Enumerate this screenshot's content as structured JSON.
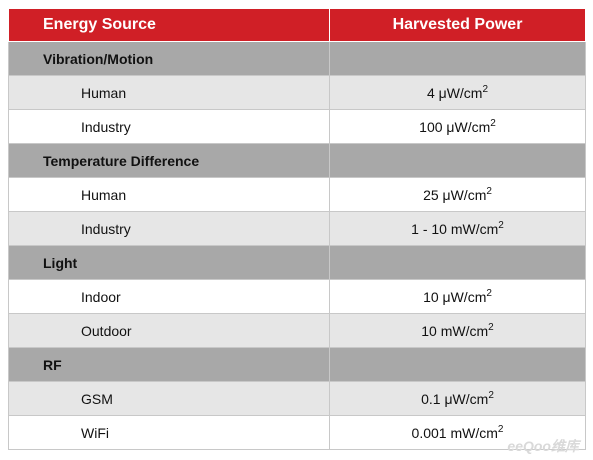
{
  "table": {
    "headers": [
      "Energy Source",
      "Harvested Power"
    ],
    "groups": [
      {
        "name": "Vibration/Motion",
        "rows": [
          {
            "label": "Human",
            "value": "4 μW/cm",
            "exp": "2"
          },
          {
            "label": "Industry",
            "value": "100 μW/cm",
            "exp": "2"
          }
        ]
      },
      {
        "name": "Temperature Difference",
        "rows": [
          {
            "label": "Human",
            "value": "25 μW/cm",
            "exp": "2"
          },
          {
            "label": "Industry",
            "value": "1 - 10 mW/cm",
            "exp": "2"
          }
        ]
      },
      {
        "name": "Light",
        "rows": [
          {
            "label": "Indoor",
            "value": "10 μW/cm",
            "exp": "2"
          },
          {
            "label": "Outdoor",
            "value": "10 mW/cm",
            "exp": "2"
          }
        ]
      },
      {
        "name": "RF",
        "rows": [
          {
            "label": "GSM",
            "value": "0.1 μW/cm",
            "exp": "2"
          },
          {
            "label": "WiFi",
            "value": "0.001 mW/cm",
            "exp": "2"
          }
        ]
      }
    ]
  },
  "watermark": "eeQoo维库",
  "colors": {
    "header_bg": "#d01f26",
    "group_bg": "#a8a8a8",
    "alt_row_bg": "#e6e6e6"
  }
}
